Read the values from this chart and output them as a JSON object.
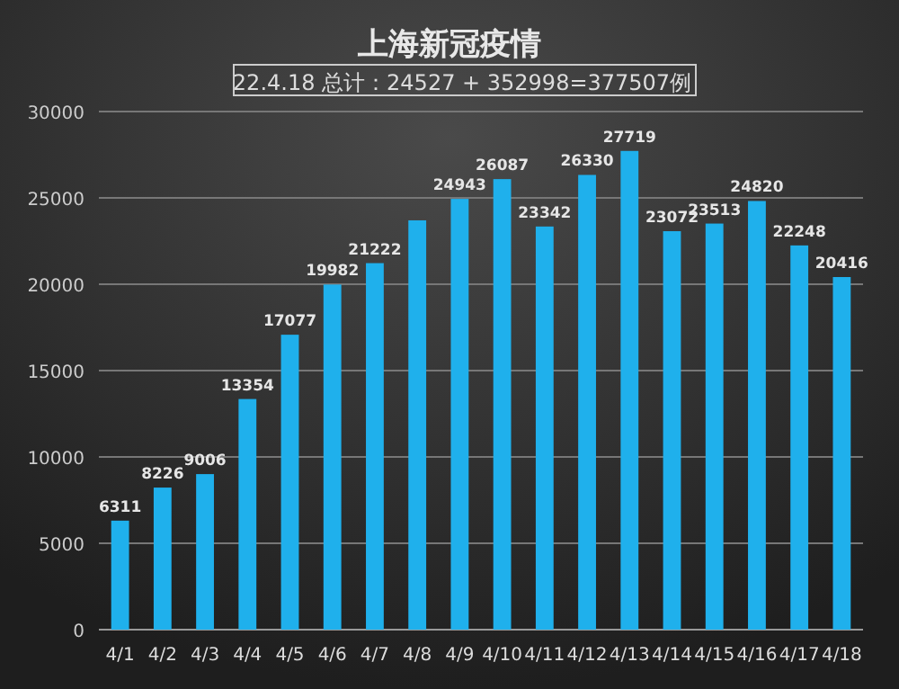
{
  "chart_data": {
    "type": "bar",
    "title": "上海新冠疫情",
    "subtitle": "22.4.18 总计：24527 + 352998=377507例",
    "categories": [
      "4/1",
      "4/2",
      "4/3",
      "4/4",
      "4/5",
      "4/6",
      "4/7",
      "4/8",
      "4/9",
      "4/10",
      "4/11",
      "4/12",
      "4/13",
      "4/14",
      "4/15",
      "4/16",
      "4/17",
      "4/18"
    ],
    "values": [
      6311,
      8226,
      9006,
      13354,
      17077,
      19982,
      21222,
      23700,
      24943,
      26087,
      23342,
      26330,
      27719,
      23072,
      23513,
      24820,
      22248,
      20416
    ],
    "value_labels": [
      "6311",
      "8226",
      "9006",
      "13354",
      "17077",
      "19982",
      "21222",
      null,
      "24943",
      "26087",
      "23342",
      "26330",
      "27719",
      "23072",
      "23513",
      "24820",
      "22248",
      "20416"
    ],
    "color": "#1fb0ec",
    "ylim": [
      0,
      30000
    ],
    "yticks": [
      0,
      5000,
      10000,
      15000,
      20000,
      25000,
      30000
    ],
    "grid": "y"
  }
}
